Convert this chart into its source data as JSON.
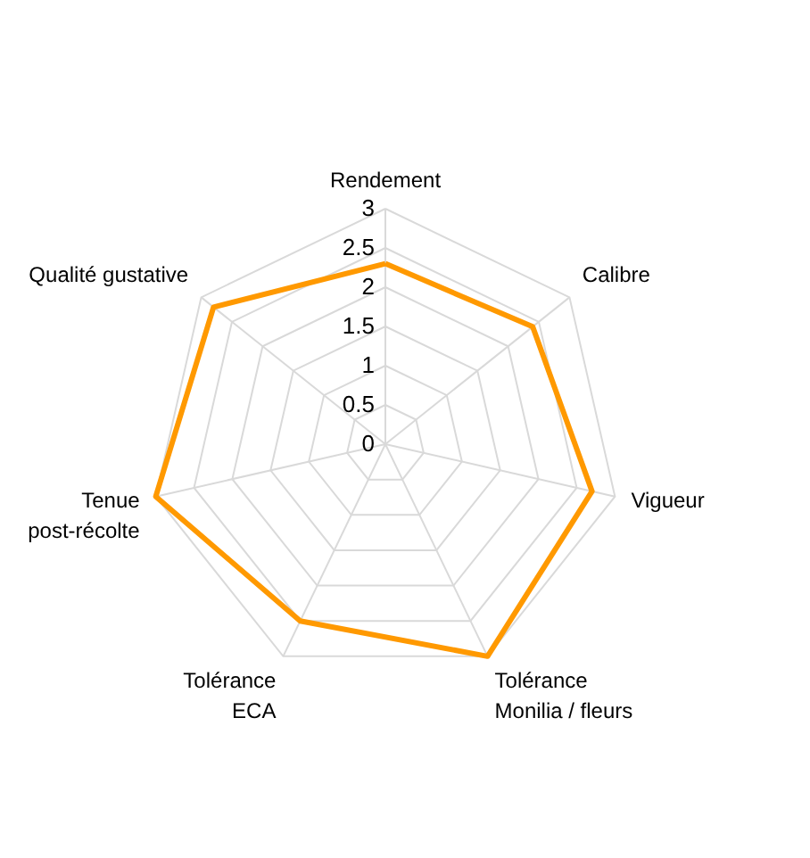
{
  "chart_data": {
    "type": "radar",
    "categories": [
      "Rendement",
      "Calibre",
      "Vigueur",
      "Tolérance\nMonilia / fleurs",
      "Tolérance\nECA",
      "Tenue\npost-récolte",
      "Qualité gustative"
    ],
    "series": [
      {
        "color": "#ff9900",
        "values": [
          2.3,
          2.4,
          2.7,
          3.0,
          2.5,
          3.0,
          2.8
        ]
      }
    ],
    "ylim": [
      0,
      3
    ],
    "yticks": [
      0,
      0.5,
      1,
      1.5,
      2,
      2.5,
      3
    ],
    "grid": true
  }
}
